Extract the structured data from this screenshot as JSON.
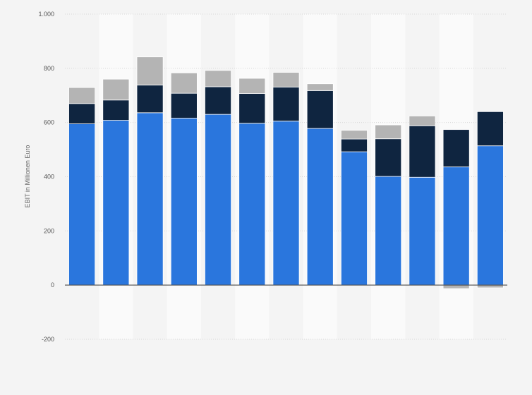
{
  "chart_data": {
    "type": "bar",
    "stacked": true,
    "ylabel": "EBIT in Millionen Euro",
    "ylim": [
      -200,
      1000
    ],
    "yticks": [
      -200,
      0,
      200,
      400,
      600,
      800,
      1000
    ],
    "ytick_labels": [
      "-200",
      "0",
      "200",
      "400",
      "600",
      "800",
      "1.000"
    ],
    "grid": true,
    "categories": [
      "",
      "",
      "",
      "",
      "",
      "",
      "",
      "",
      "",
      "",
      "",
      "",
      ""
    ],
    "series": [
      {
        "color": "#2a76dd",
        "values": [
          595,
          608,
          636,
          616,
          630,
          597,
          605,
          578,
          492,
          401,
          398,
          436,
          514
        ]
      },
      {
        "color": "#0f2540",
        "values": [
          75,
          75,
          102,
          92,
          102,
          110,
          126,
          140,
          47,
          139,
          190,
          138,
          126
        ]
      },
      {
        "color": "#b4b4b4",
        "values": [
          59,
          77,
          104,
          75,
          60,
          56,
          54,
          25,
          32,
          51,
          36,
          -13,
          -10
        ]
      }
    ]
  }
}
